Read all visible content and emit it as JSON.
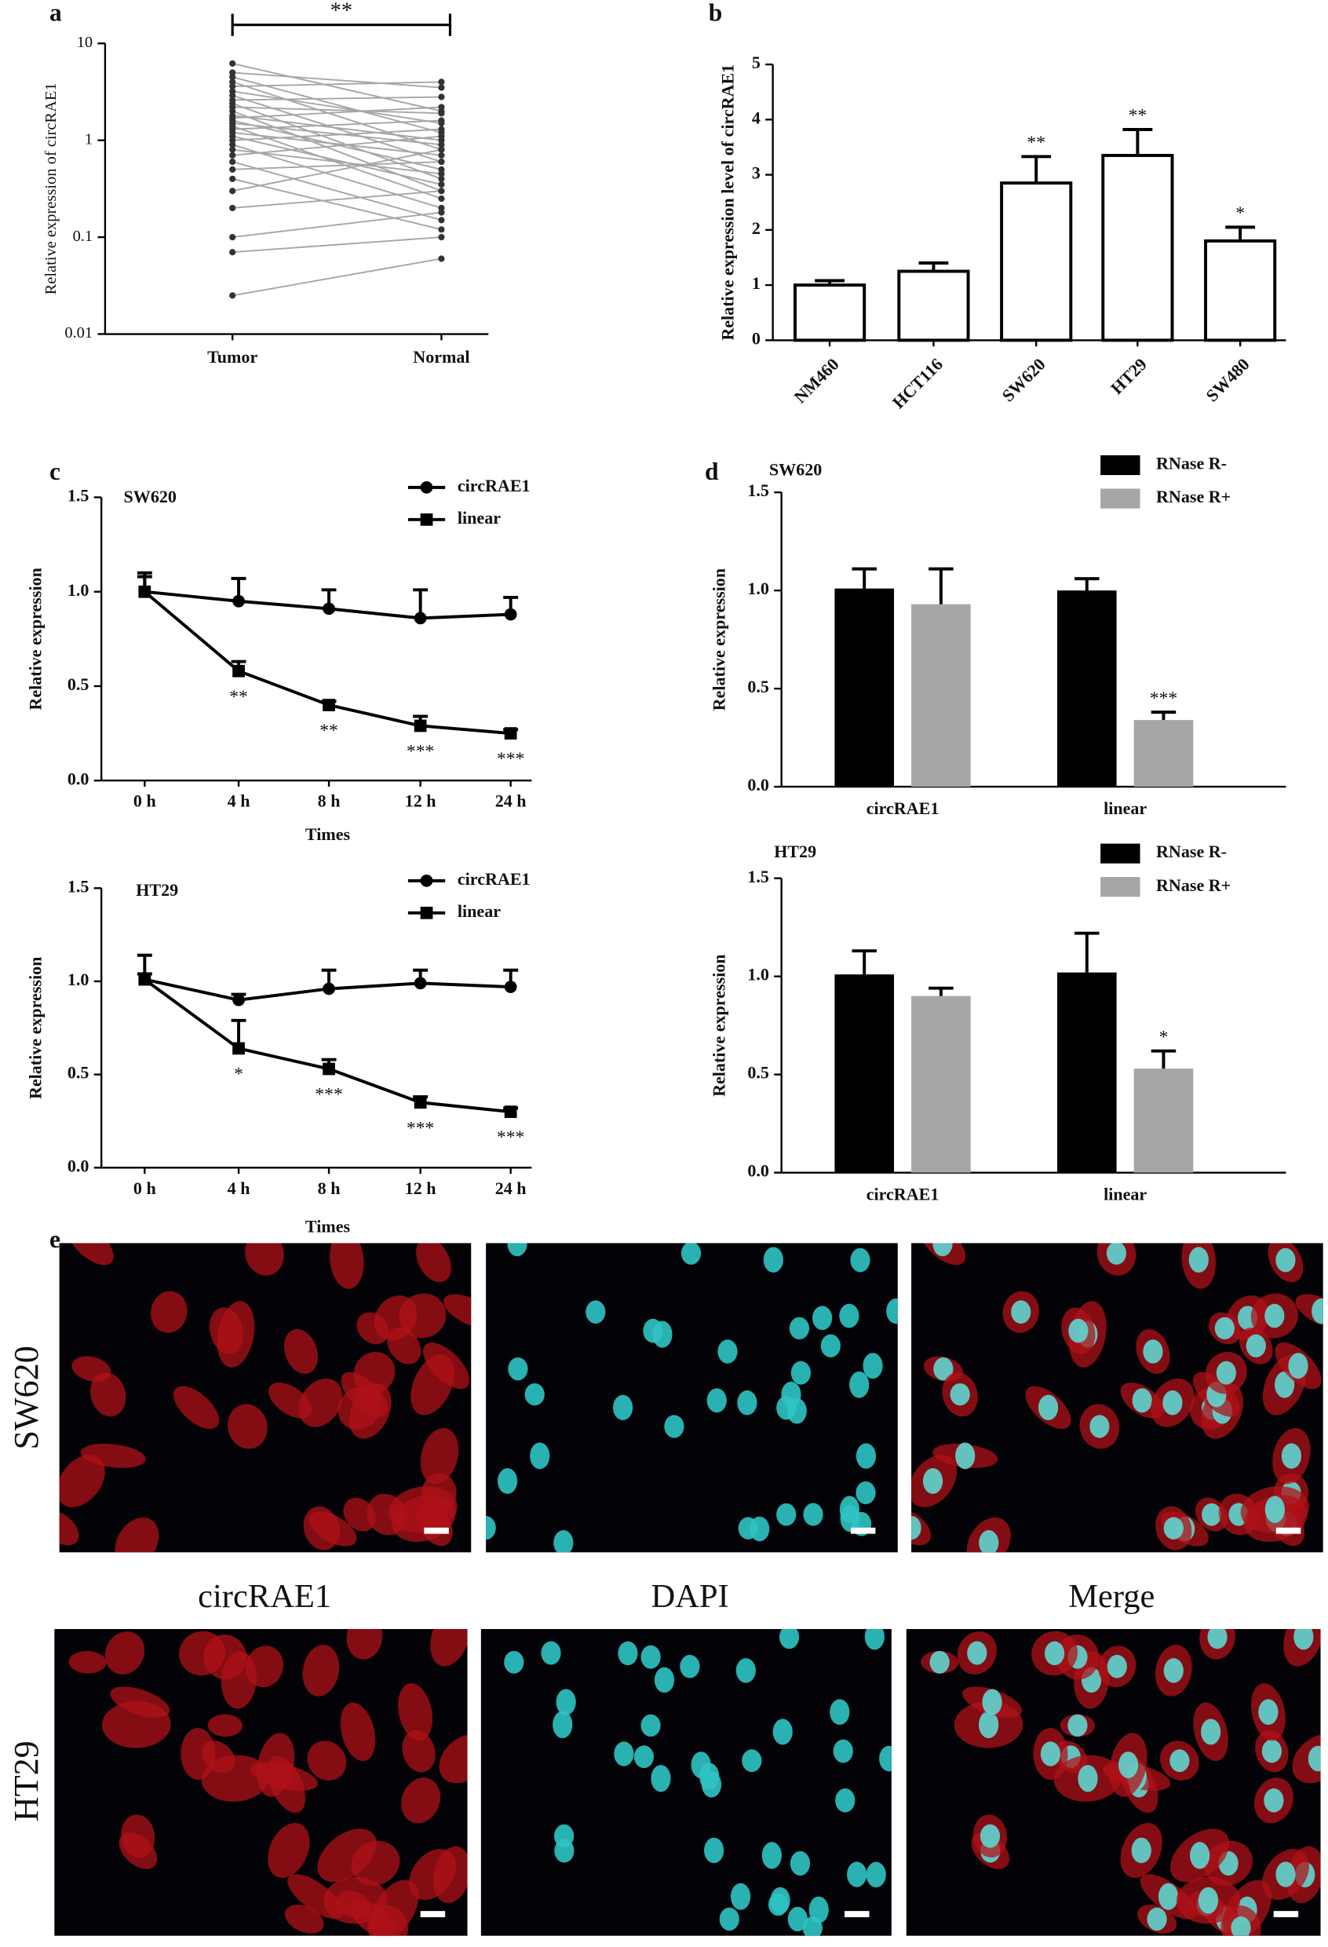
{
  "chart_data": [
    {
      "type": "paired",
      "panel": "a",
      "y_label": "Relative expression of circRAE1",
      "annotation": "**",
      "categories": [
        "Tumor",
        "Normal"
      ],
      "log_scale": true,
      "values": [
        [
          6.2,
          5.0,
          4.5,
          4.0,
          3.6,
          3.2,
          2.9,
          2.6,
          2.4,
          2.2,
          2.0,
          1.8,
          1.7,
          1.6,
          1.5,
          1.4,
          1.3,
          1.2,
          1.1,
          1.0,
          0.9,
          0.8,
          0.7,
          0.6,
          0.5,
          0.4,
          0.3,
          0.2,
          0.1,
          0.07,
          0.025
        ],
        [
          2.0,
          3.5,
          1.2,
          0.8,
          4.0,
          1.5,
          0.6,
          2.8,
          0.4,
          1.9,
          0.3,
          1.0,
          2.2,
          0.5,
          0.9,
          0.25,
          1.6,
          0.7,
          0.35,
          1.3,
          0.2,
          0.45,
          1.1,
          0.15,
          0.6,
          0.12,
          0.8,
          0.3,
          0.18,
          0.1,
          0.06
        ]
      ],
      "line_color": "#a6a6a6",
      "point_color": "#333333",
      "ylim": [
        0.01,
        10
      ],
      "yticks": [
        0.01,
        0.1,
        1,
        10
      ]
    },
    {
      "type": "bar",
      "panel": "b",
      "y_label": "Relative expression level of circRAE1",
      "categories": [
        "NM460",
        "HCT116",
        "SW620",
        "HT29",
        "SW480"
      ],
      "values": [
        1.0,
        1.25,
        2.85,
        3.35,
        1.8
      ],
      "errors": [
        0.08,
        0.15,
        0.48,
        0.47,
        0.25
      ],
      "significance": [
        null,
        null,
        "**",
        "**",
        "*"
      ],
      "color": "#ffffff",
      "ylim": [
        0,
        5
      ],
      "yticks": [
        0,
        1,
        2,
        3,
        4,
        5
      ]
    },
    {
      "type": "line",
      "panel": "c",
      "subtitle": "SW620",
      "x_label": "Times",
      "y_label": "Relative expression",
      "categories": [
        "0 h",
        "4 h",
        "8 h",
        "12 h",
        "24 h"
      ],
      "series": [
        {
          "name": "circRAE1",
          "marker": "circle",
          "color": "#000000",
          "values": [
            1.0,
            0.95,
            0.91,
            0.86,
            0.88
          ],
          "errors": [
            0.1,
            0.12,
            0.1,
            0.15,
            0.09
          ]
        },
        {
          "name": "linear",
          "marker": "square",
          "color": "#000000",
          "values": [
            1.0,
            0.58,
            0.4,
            0.29,
            0.25
          ],
          "errors": [
            0.08,
            0.05,
            0.02,
            0.05,
            0.02
          ],
          "significance": [
            null,
            "**",
            "**",
            "***",
            "***"
          ]
        }
      ],
      "ylim": [
        0,
        1.5
      ],
      "yticks": [
        {
          "value": 0,
          "label": "0.0"
        },
        0.5,
        {
          "value": 1,
          "label": "1.0"
        },
        1.5
      ]
    },
    {
      "type": "line",
      "subtitle": "HT29",
      "x_label": "Times",
      "y_label": "Relative expression",
      "categories": [
        "0 h",
        "4 h",
        "8 h",
        "12 h",
        "24 h"
      ],
      "series": [
        {
          "name": "circRAE1",
          "marker": "circle",
          "color": "#000000",
          "values": [
            1.01,
            0.9,
            0.96,
            0.99,
            0.97
          ],
          "errors": [
            0.13,
            0.03,
            0.1,
            0.07,
            0.09
          ]
        },
        {
          "name": "linear",
          "marker": "square",
          "color": "#000000",
          "values": [
            1.01,
            0.64,
            0.53,
            0.35,
            0.3
          ],
          "errors": [
            0.03,
            0.15,
            0.05,
            0.03,
            0.02
          ],
          "significance": [
            null,
            "*",
            "***",
            "***",
            "***"
          ]
        }
      ],
      "ylim": [
        0,
        1.5
      ],
      "yticks": [
        {
          "value": 0,
          "label": "0.0"
        },
        0.5,
        {
          "value": 1,
          "label": "1.0"
        },
        1.5
      ]
    },
    {
      "type": "grouped_bar",
      "panel": "d",
      "subtitle": "SW620",
      "y_label": "Relative expression",
      "categories": [
        "circRAE1",
        "linear"
      ],
      "series": [
        {
          "name": "RNase R-",
          "color": "#000000",
          "values": [
            1.01,
            1.0
          ],
          "errors": [
            0.1,
            0.06
          ]
        },
        {
          "name": "RNase R+",
          "color": "#a6a6a6",
          "values": [
            0.93,
            0.34
          ],
          "errors": [
            0.18,
            0.04
          ],
          "significance": [
            null,
            "***"
          ]
        }
      ],
      "ylim": [
        0,
        1.5
      ],
      "yticks": [
        {
          "value": 0,
          "label": "0.0"
        },
        0.5,
        {
          "value": 1,
          "label": "1.0"
        },
        1.5
      ]
    },
    {
      "type": "grouped_bar",
      "subtitle": "HT29",
      "y_label": "Relative expression",
      "categories": [
        "circRAE1",
        "linear"
      ],
      "series": [
        {
          "name": "RNase R-",
          "color": "#000000",
          "values": [
            1.01,
            1.02
          ],
          "errors": [
            0.12,
            0.2
          ]
        },
        {
          "name": "RNase R+",
          "color": "#a6a6a6",
          "values": [
            0.9,
            0.53
          ],
          "errors": [
            0.04,
            0.09
          ],
          "significance": [
            null,
            "*"
          ]
        }
      ],
      "ylim": [
        0,
        1.5
      ],
      "yticks": [
        {
          "value": 0,
          "label": "0.0"
        },
        0.5,
        {
          "value": 1,
          "label": "1.0"
        },
        1.5
      ]
    }
  ],
  "image_panel": {
    "panel": "e",
    "rows": [
      "SW620",
      "HT29"
    ],
    "columns": [
      "circRAE1",
      "DAPI",
      "Merge"
    ]
  }
}
